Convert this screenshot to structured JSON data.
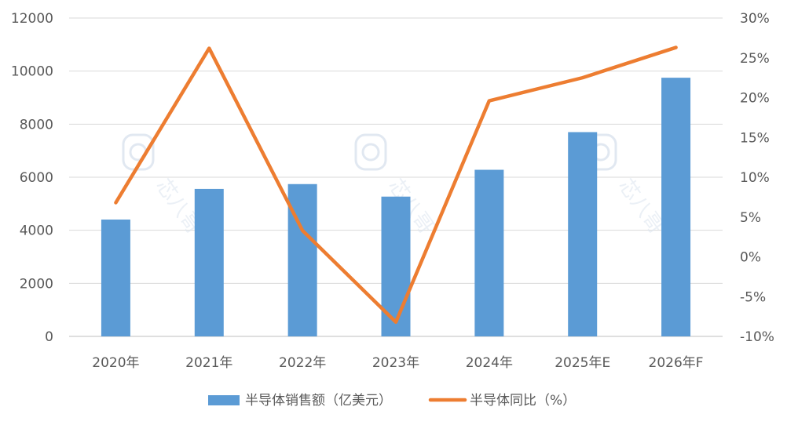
{
  "chart_data": {
    "type": "bar",
    "categories": [
      "2020年",
      "2021年",
      "2022年",
      "2023年",
      "2024年",
      "2025年E",
      "2026年F"
    ],
    "series": [
      {
        "name": "半导体销售额（亿美元）",
        "type": "bar",
        "axis": "left",
        "color": "#5b9bd5",
        "values": [
          4404,
          5559,
          5741,
          5269,
          6280,
          7700,
          9750
        ]
      },
      {
        "name": "半导体同比（%）",
        "type": "line",
        "axis": "right",
        "color": "#ed7d31",
        "values": [
          6.8,
          26.2,
          3.3,
          -8.2,
          19.6,
          22.5,
          26.3
        ]
      }
    ],
    "y_left": {
      "ylim": [
        0,
        12000
      ],
      "ticks": [
        0,
        2000,
        4000,
        6000,
        8000,
        10000,
        12000
      ],
      "tick_labels": [
        "0",
        "2000",
        "4000",
        "6000",
        "8000",
        "10000",
        "12000"
      ]
    },
    "y_right": {
      "ylim": [
        -10,
        30
      ],
      "ticks": [
        -10,
        -5,
        0,
        5,
        10,
        15,
        20,
        25,
        30
      ],
      "tick_labels": [
        "-10%",
        "-5%",
        "0%",
        "5%",
        "10%",
        "15%",
        "20%",
        "25%",
        "30%"
      ]
    },
    "grid": true,
    "legend_position": "bottom",
    "watermark_text": "芯八哥"
  }
}
